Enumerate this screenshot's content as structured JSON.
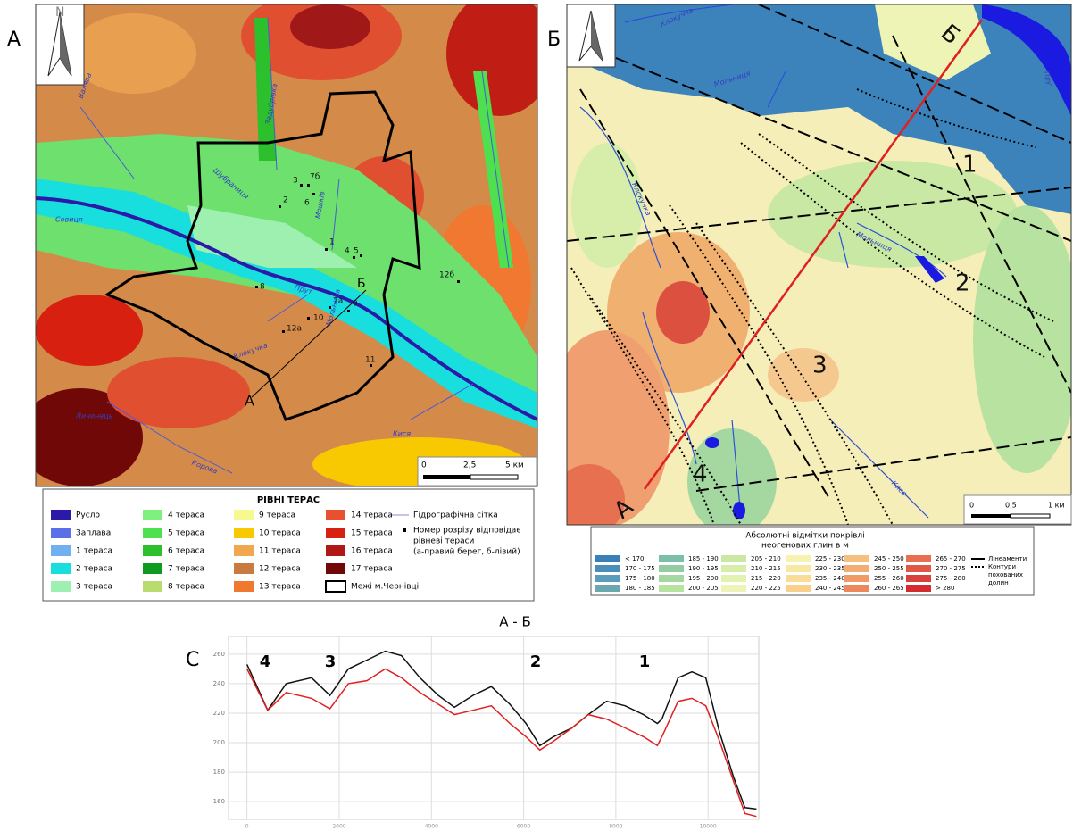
{
  "panel_labels": {
    "a": "А",
    "b": "Б",
    "c": "С"
  },
  "left_map": {
    "north": "N",
    "points": [
      "3",
      "7б",
      "2",
      "6",
      "1",
      "4",
      "5",
      "8",
      "7а",
      "9",
      "10",
      "12а",
      "11",
      "12б"
    ],
    "rivers": [
      "Совиця",
      "Прут",
      "Шубраниця",
      "Мошків",
      "Клокучка",
      "Личинець",
      "Корова",
      "Кися",
      "Мольниця",
      "Валява",
      "Задубрівка"
    ],
    "profile_ends": [
      "А",
      "Б"
    ],
    "scale": [
      "0",
      "2,5",
      "5 км"
    ]
  },
  "left_legend": {
    "title": "РІВНІ ТЕРАС",
    "items": [
      {
        "label": "Русло",
        "color": "#2b1aa8"
      },
      {
        "label": "Заплава",
        "color": "#5a6fe8"
      },
      {
        "label": "1 тераса",
        "color": "#6fb0f0"
      },
      {
        "label": "2 тераса",
        "color": "#19dede"
      },
      {
        "label": "3 тераса",
        "color": "#9ef0b0"
      },
      {
        "label": "4 тераса",
        "color": "#7ef07e"
      },
      {
        "label": "5 тераса",
        "color": "#4ee04e"
      },
      {
        "label": "6 тераса",
        "color": "#2cc02c"
      },
      {
        "label": "7 тераса",
        "color": "#0e9a1e"
      },
      {
        "label": "8 тераса",
        "color": "#b8dc70"
      },
      {
        "label": "9 тераса",
        "color": "#f8f890"
      },
      {
        "label": "10 тераса",
        "color": "#f8c800"
      },
      {
        "label": "11 тераса",
        "color": "#f0a850"
      },
      {
        "label": "12 тераса",
        "color": "#c87a40"
      },
      {
        "label": "13 тераса",
        "color": "#f07830"
      },
      {
        "label": "14 тераса",
        "color": "#e85030"
      },
      {
        "label": "15 тераса",
        "color": "#d82010"
      },
      {
        "label": "16 тераса",
        "color": "#b01818"
      },
      {
        "label": "17 тераса",
        "color": "#700808"
      }
    ],
    "boundary": "Межі м.Чернівці",
    "hydro": "Гідрографічна сітка",
    "section_note": [
      "Номер розрізу відповідає",
      "рівневі тераси",
      "(а-правий берег, б-лівий)"
    ]
  },
  "right_map": {
    "rivers": [
      "Клокучка",
      "Мольниця",
      "Прут",
      "Клокучка",
      "Мольниця",
      "Кися"
    ],
    "zones": [
      "1",
      "2",
      "3",
      "4"
    ],
    "profile_ends": [
      "А",
      "Б"
    ],
    "scale": [
      "0",
      "0,5",
      "1 км"
    ]
  },
  "right_legend": {
    "title": [
      "Абсолютні  відмітки покрівлі",
      "неогенових глин в м"
    ],
    "items": [
      {
        "label": "< 170",
        "color": "#3a80b8"
      },
      {
        "label": "170 - 175",
        "color": "#4a8fbc"
      },
      {
        "label": "175 - 180",
        "color": "#5a9cba"
      },
      {
        "label": "180 - 185",
        "color": "#6aa8b0"
      },
      {
        "label": "185 - 190",
        "color": "#7bbfa8"
      },
      {
        "label": "190 - 195",
        "color": "#92cca2"
      },
      {
        "label": "195 - 200",
        "color": "#a5d8a0"
      },
      {
        "label": "200 - 205",
        "color": "#b8e2a0"
      },
      {
        "label": "205 - 210",
        "color": "#c8e8a4"
      },
      {
        "label": "210 - 215",
        "color": "#d6eeaa"
      },
      {
        "label": "215 - 220",
        "color": "#e2f2b0"
      },
      {
        "label": "220 - 225",
        "color": "#eef4b6"
      },
      {
        "label": "225 - 230",
        "color": "#f8f2b0"
      },
      {
        "label": "230 - 235",
        "color": "#f9e8a4"
      },
      {
        "label": "235 - 240",
        "color": "#f9dc98"
      },
      {
        "label": "240 - 245",
        "color": "#f8d08c"
      },
      {
        "label": "245 - 250",
        "color": "#f5bf80"
      },
      {
        "label": "250 - 255",
        "color": "#f2ad74"
      },
      {
        "label": "255 - 260",
        "color": "#ef9b68"
      },
      {
        "label": "260 - 265",
        "color": "#ec885c"
      },
      {
        "label": "265 - 270",
        "color": "#e67050"
      },
      {
        "label": "270 - 275",
        "color": "#e05846"
      },
      {
        "label": "275 - 280",
        "color": "#da403c"
      },
      {
        "label": "> 280",
        "color": "#d42a30"
      }
    ],
    "lineaments": "Лінеаменти",
    "valleys": [
      "Контури",
      "похованих",
      "долин"
    ]
  },
  "chart_data": {
    "type": "line",
    "title": "А - Б",
    "x": [
      0,
      450,
      850,
      1400,
      1800,
      2200,
      2600,
      3000,
      3350,
      3750,
      4150,
      4500,
      4900,
      5300,
      5700,
      6050,
      6350,
      6650,
      7050,
      7400,
      7800,
      8200,
      8600,
      8900,
      9000,
      9350,
      9650,
      9950,
      10250,
      10550,
      10800,
      11050
    ],
    "series": [
      {
        "color": "#111111",
        "values": [
          253,
          222,
          240,
          244,
          232,
          250,
          256,
          262,
          259,
          244,
          232,
          224,
          232,
          238,
          226,
          213,
          198,
          204,
          210,
          219,
          228,
          225,
          219,
          213,
          216,
          244,
          248,
          244,
          207,
          177,
          156,
          155
        ]
      },
      {
        "color": "#e02020",
        "values": [
          250,
          222,
          234,
          230,
          223,
          240,
          242,
          250,
          244,
          234,
          226,
          219,
          222,
          225,
          213,
          204,
          195,
          201,
          210,
          219,
          216,
          210,
          204,
          198,
          204,
          228,
          230,
          225,
          201,
          174,
          152,
          150
        ]
      }
    ],
    "annotations": [
      "4",
      "3",
      "2",
      "1"
    ],
    "xlim": [
      -400,
      11100
    ],
    "ylim": [
      148,
      272
    ],
    "xticks": [
      0,
      2000,
      4000,
      6000,
      8000,
      10000
    ],
    "yticks": [
      160,
      180,
      200,
      220,
      240,
      260
    ],
    "grid": true
  }
}
